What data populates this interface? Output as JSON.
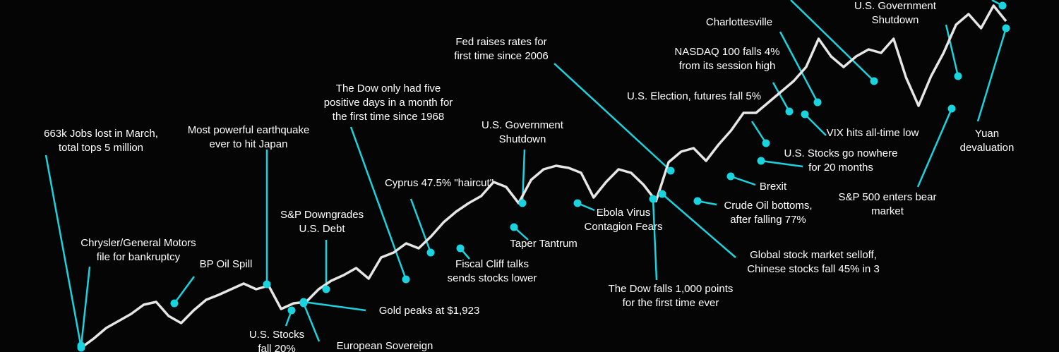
{
  "chart_data": {
    "type": "line",
    "color": "#e6e6e6",
    "values": [
      0,
      13,
      28,
      38,
      48,
      61,
      65,
      45,
      35,
      53,
      68,
      75,
      83,
      91,
      83,
      88,
      55,
      63,
      65,
      83,
      95,
      103,
      113,
      98,
      128,
      135,
      148,
      141,
      158,
      178,
      193,
      205,
      215,
      235,
      228,
      205,
      238,
      253,
      258,
      255,
      248,
      213,
      235,
      253,
      248,
      231,
      208,
      263,
      278,
      283,
      265,
      288,
      308,
      333,
      333,
      348,
      363,
      378,
      398,
      438,
      413,
      398,
      413,
      423,
      418,
      438,
      383,
      343,
      385,
      418,
      458,
      473,
      453,
      485,
      463
    ],
    "annotation_color": "#19d3de",
    "annotations": [
      {
        "lines": [
          "663k Jobs lost in March,",
          "total tops 5 million"
        ]
      },
      {
        "lines": [
          "Chrysler/General Motors",
          "file for bankruptcy"
        ]
      },
      {
        "lines": [
          "BP Oil Spill"
        ]
      },
      {
        "lines": [
          "Most powerful earthquake",
          "ever to hit Japan"
        ]
      },
      {
        "lines": [
          "S&P Downgrades",
          "U.S. Debt"
        ]
      },
      {
        "lines": [
          "U.S. Stocks",
          "fall 20%"
        ]
      },
      {
        "lines": [
          "European Sovereign"
        ]
      },
      {
        "lines": [
          "Gold peaks at $1,923"
        ]
      },
      {
        "lines": [
          "The Dow only had five",
          "positive days in a month for",
          "the first time since 1968"
        ]
      },
      {
        "lines": [
          "Cyprus 47.5% \"haircut\""
        ]
      },
      {
        "lines": [
          "Fiscal Cliff talks",
          "sends stocks lower"
        ]
      },
      {
        "lines": [
          "U.S. Government",
          "Shutdown"
        ]
      },
      {
        "lines": [
          "Taper Tantrum"
        ]
      },
      {
        "lines": [
          "Ebola Virus",
          "Contagion Fears"
        ]
      },
      {
        "lines": [
          "Fed raises rates for",
          "first time since 2006"
        ]
      },
      {
        "lines": [
          "The Dow falls 1,000 points",
          "for the first time ever"
        ]
      },
      {
        "lines": [
          "Global stock market selloff,",
          "Chinese stocks fall 45% in 3"
        ]
      },
      {
        "lines": [
          "Crude Oil bottoms,",
          "after falling 77%"
        ]
      },
      {
        "lines": [
          "U.S. Election, futures fall 5%"
        ]
      },
      {
        "lines": [
          "Brexit"
        ]
      },
      {
        "lines": [
          "U.S. Stocks go nowhere",
          "for 20 months"
        ]
      },
      {
        "lines": [
          "NASDAQ 100 falls 4%",
          "from its  session high"
        ]
      },
      {
        "lines": [
          "Charlottesville"
        ]
      },
      {
        "lines": [
          "VIX hits all-time low"
        ]
      },
      {
        "lines": [
          "U.S. Government",
          "Shutdown"
        ]
      },
      {
        "lines": [
          "S&P 500 enters bear",
          "market"
        ]
      },
      {
        "lines": [
          "Yuan",
          "devaluation"
        ]
      }
    ]
  }
}
